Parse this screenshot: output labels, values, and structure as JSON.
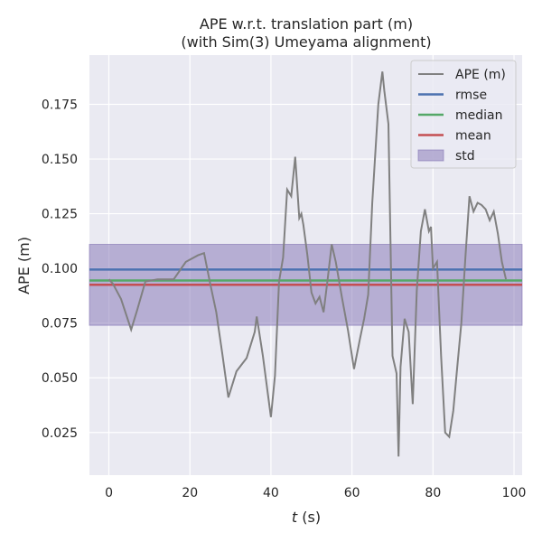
{
  "chart_data": {
    "type": "line",
    "title": "APE w.r.t. translation part (m)",
    "subtitle": "(with Sim(3) Umeyama alignment)",
    "xlabel_italic": "t",
    "xlabel_unit": " (s)",
    "ylabel": "APE (m)",
    "xlim": [
      -4.8,
      102
    ],
    "ylim": [
      0.0055,
      0.1975
    ],
    "xticks": [
      0,
      20,
      40,
      60,
      80,
      100
    ],
    "xtick_labels": [
      "0",
      "20",
      "40",
      "60",
      "80",
      "100"
    ],
    "yticks": [
      0.025,
      0.05,
      0.075,
      0.1,
      0.125,
      0.15,
      0.175
    ],
    "ytick_labels": [
      "0.025",
      "0.050",
      "0.075",
      "0.100",
      "0.125",
      "0.150",
      "0.175"
    ],
    "grid": true,
    "legend_position": "top-right",
    "rmse": 0.0995,
    "median": 0.0945,
    "mean": 0.0925,
    "std_band": [
      0.074,
      0.111
    ],
    "series": [
      {
        "name": "APE (m)",
        "color": "#808080",
        "x": [
          0,
          1,
          3,
          5.5,
          7,
          9,
          12,
          16,
          19,
          22,
          23.5,
          25,
          26.5,
          28,
          29.5,
          31.5,
          34,
          36,
          36.5,
          37,
          38,
          40,
          41,
          42,
          43,
          44,
          45,
          46,
          47,
          47.5,
          48,
          49,
          50,
          51,
          52,
          53,
          54,
          55,
          56,
          57.5,
          59,
          60.5,
          62,
          63,
          64,
          65,
          66.5,
          67.5,
          68,
          69,
          70,
          71,
          71.5,
          72,
          73,
          74,
          75,
          76,
          77,
          78,
          79,
          79.5,
          80,
          81,
          82,
          83,
          84,
          85,
          86,
          87,
          88,
          89,
          90,
          91,
          92,
          93,
          94,
          95,
          96,
          97,
          98
        ],
        "values": [
          0.095,
          0.093,
          0.086,
          0.072,
          0.081,
          0.094,
          0.095,
          0.095,
          0.103,
          0.106,
          0.107,
          0.093,
          0.08,
          0.061,
          0.041,
          0.053,
          0.059,
          0.071,
          0.078,
          0.072,
          0.06,
          0.032,
          0.051,
          0.094,
          0.105,
          0.136,
          0.133,
          0.151,
          0.123,
          0.125,
          0.12,
          0.106,
          0.089,
          0.084,
          0.087,
          0.08,
          0.095,
          0.111,
          0.103,
          0.087,
          0.072,
          0.054,
          0.068,
          0.077,
          0.088,
          0.13,
          0.175,
          0.19,
          0.181,
          0.166,
          0.06,
          0.052,
          0.014,
          0.055,
          0.077,
          0.071,
          0.038,
          0.09,
          0.117,
          0.127,
          0.117,
          0.119,
          0.1,
          0.103,
          0.06,
          0.025,
          0.023,
          0.035,
          0.055,
          0.075,
          0.105,
          0.133,
          0.126,
          0.13,
          0.129,
          0.127,
          0.122,
          0.126,
          0.116,
          0.103,
          0.095
        ]
      }
    ],
    "legend": [
      {
        "label": "APE (m)",
        "kind": "line",
        "color": "#808080"
      },
      {
        "label": "rmse",
        "kind": "line",
        "color": "#4c72b0"
      },
      {
        "label": "median",
        "kind": "line",
        "color": "#55a868"
      },
      {
        "label": "mean",
        "kind": "line",
        "color": "#c44e52"
      },
      {
        "label": "std",
        "kind": "patch",
        "color": "#8172b3"
      }
    ],
    "colors": {
      "background": "#eaeaf2",
      "grid": "#ffffff",
      "rmse": "#4c72b0",
      "median": "#55a868",
      "mean": "#c44e52",
      "std": "#8172b3",
      "ape": "#808080"
    }
  }
}
